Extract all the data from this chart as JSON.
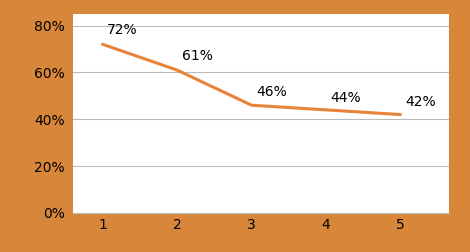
{
  "x": [
    1,
    2,
    3,
    4,
    5
  ],
  "y": [
    0.72,
    0.61,
    0.46,
    0.44,
    0.42
  ],
  "labels": [
    "72%",
    "61%",
    "46%",
    "44%",
    "42%"
  ],
  "line_color": "#E8833A",
  "line_width": 2.2,
  "background_color": "#D8873A",
  "plot_bg_color": "#FFFFFF",
  "ylim": [
    0.0,
    0.85
  ],
  "yticks": [
    0.0,
    0.2,
    0.4,
    0.6,
    0.8
  ],
  "ytick_labels": [
    "0%",
    "20%",
    "40%",
    "60%",
    "80%"
  ],
  "xticks": [
    1,
    2,
    3,
    4,
    5
  ],
  "grid_color": "#BBBBBB",
  "font_size": 10,
  "tick_font_size": 10,
  "label_font_size": 10
}
